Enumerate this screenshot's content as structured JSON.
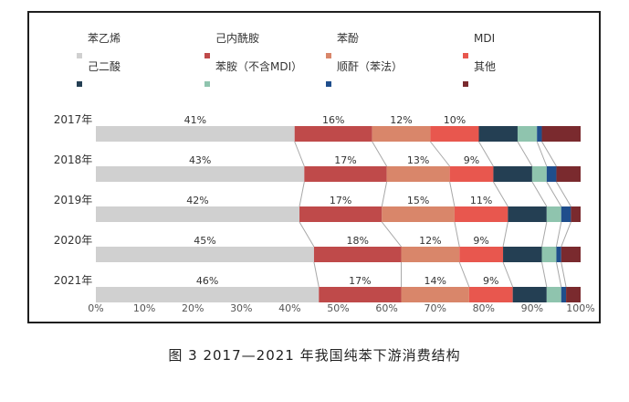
{
  "caption": "图 3  2017—2021 年我国纯苯下游消费结构",
  "chart_data": {
    "type": "bar",
    "orientation": "horizontal",
    "stacked": true,
    "percent": true,
    "categories": [
      "2017年",
      "2018年",
      "2019年",
      "2020年",
      "2021年"
    ],
    "xlim": [
      0,
      100
    ],
    "x_tick_labels": [
      "0%",
      "10%",
      "20%",
      "30%",
      "40%",
      "50%",
      "60%",
      "70%",
      "80%",
      "90%",
      "100%"
    ],
    "grid": false,
    "legend_position": "top",
    "series": [
      {
        "name": "苯乙烯",
        "color": "#d0d0d0",
        "values": [
          41,
          43,
          42,
          45,
          46
        ]
      },
      {
        "name": "己内酰胺",
        "color": "#bf4a4a",
        "values": [
          16,
          17,
          17,
          18,
          17
        ]
      },
      {
        "name": "苯酚",
        "color": "#d9866a",
        "values": [
          12,
          13,
          15,
          12,
          14
        ]
      },
      {
        "name": "MDI",
        "color": "#e8574e",
        "values": [
          10,
          9,
          11,
          9,
          9
        ]
      },
      {
        "name": "己二酸",
        "color": "#243f53",
        "values": [
          8,
          8,
          8,
          8,
          7
        ]
      },
      {
        "name": "苯胺（不含MDI）",
        "color": "#8fc4ae",
        "values": [
          4,
          3,
          3,
          3,
          3
        ]
      },
      {
        "name": "顺酐（苯法）",
        "color": "#1f4e8c",
        "values": [
          1,
          2,
          2,
          1,
          1
        ]
      },
      {
        "name": "其他",
        "color": "#7a2a2e",
        "values": [
          8,
          5,
          2,
          4,
          3
        ]
      }
    ],
    "data_labels": [
      [
        "41%",
        "16%",
        "12%",
        "10%"
      ],
      [
        "43%",
        "17%",
        "13%",
        "9%"
      ],
      [
        "42%",
        "17%",
        "15%",
        "11%"
      ],
      [
        "45%",
        "18%",
        "12%",
        "9%"
      ],
      [
        "46%",
        "17%",
        "14%",
        "9%"
      ]
    ]
  }
}
